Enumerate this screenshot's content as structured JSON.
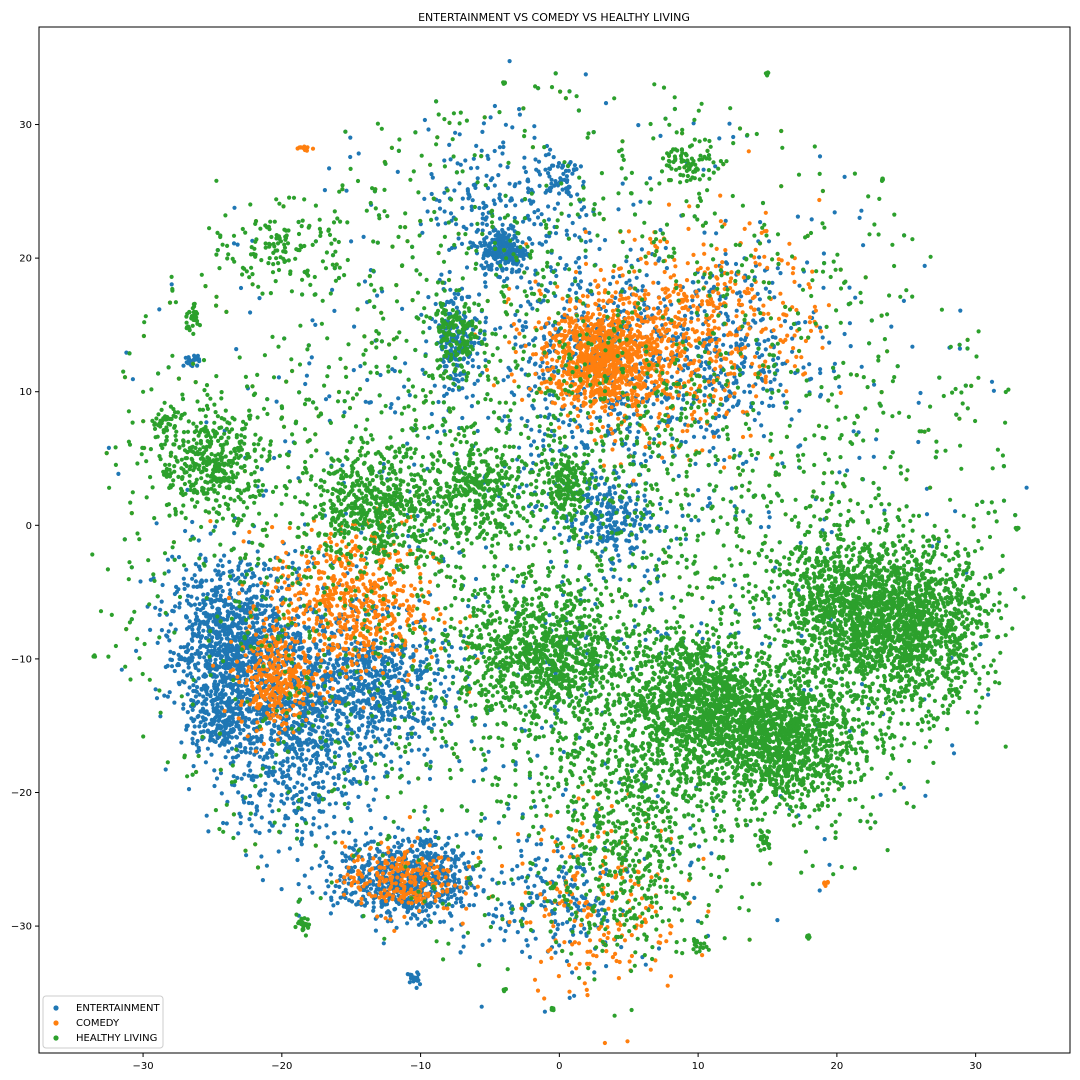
{
  "chart_data": {
    "type": "scatter",
    "title": "ENTERTAINMENT VS COMEDY VS HEALTHY LIVING",
    "xlabel": "",
    "ylabel": "",
    "xlim": [
      -37.5,
      36.8
    ],
    "ylim": [
      -39.5,
      37.3
    ],
    "xticks": [
      -30,
      -20,
      -10,
      0,
      10,
      20,
      30
    ],
    "yticks": [
      -30,
      -20,
      -10,
      0,
      10,
      20,
      30
    ],
    "xtick_labels": [
      "−30",
      "−20",
      "−10",
      "0",
      "10",
      "20",
      "30"
    ],
    "ytick_labels": [
      "−30",
      "−20",
      "−10",
      "0",
      "10",
      "20",
      "30"
    ],
    "grid": false,
    "legend_position": "lower-left",
    "series": [
      {
        "name": "ENTERTAINMENT",
        "color": "#1f77b4",
        "clusters": [
          {
            "x": -24,
            "y": -9,
            "sx": 2.0,
            "sy": 3.0,
            "n": 900
          },
          {
            "x": -19,
            "y": -14,
            "sx": 3.0,
            "sy": 4.5,
            "n": 1100
          },
          {
            "x": -13,
            "y": -12,
            "sx": 2.5,
            "sy": 2.5,
            "n": 500
          },
          {
            "x": -11,
            "y": -26.5,
            "sx": 2.5,
            "sy": 1.5,
            "n": 700
          },
          {
            "x": -24.5,
            "y": -15,
            "sx": 1.0,
            "sy": 1.0,
            "n": 150
          },
          {
            "x": -4,
            "y": 20.5,
            "sx": 0.8,
            "sy": 0.8,
            "n": 220
          },
          {
            "x": -7.5,
            "y": 14,
            "sx": 0.8,
            "sy": 2.0,
            "n": 180
          },
          {
            "x": 3.5,
            "y": 0.5,
            "sx": 1.5,
            "sy": 1.5,
            "n": 200
          },
          {
            "x": 0,
            "y": 26,
            "sx": 1.0,
            "sy": 1.0,
            "n": 60
          },
          {
            "x": -4.5,
            "y": 24,
            "sx": 2.5,
            "sy": 3.0,
            "n": 200
          },
          {
            "x": 3,
            "y": 12,
            "sx": 3.5,
            "sy": 4.5,
            "n": 500
          },
          {
            "x": 12,
            "y": 13,
            "sx": 3.0,
            "sy": 3.5,
            "n": 300
          },
          {
            "x": 0,
            "y": -28,
            "sx": 2.5,
            "sy": 3.0,
            "n": 200
          },
          {
            "x": -10.5,
            "y": -34,
            "sx": 0.2,
            "sy": 0.3,
            "n": 20
          },
          {
            "x": -26.5,
            "y": 12.3,
            "sx": 0.3,
            "sy": 0.2,
            "n": 25
          },
          {
            "x": 0,
            "y": 0,
            "sx": 17.0,
            "sy": 17.0,
            "n": 1400
          }
        ]
      },
      {
        "name": "COMEDY",
        "color": "#ff7f0e",
        "clusters": [
          {
            "x": 3,
            "y": 12.5,
            "sx": 2.0,
            "sy": 1.8,
            "n": 800
          },
          {
            "x": 6,
            "y": 13,
            "sx": 4.0,
            "sy": 3.5,
            "n": 500
          },
          {
            "x": 12,
            "y": 16,
            "sx": 3.5,
            "sy": 3.5,
            "n": 250
          },
          {
            "x": -15,
            "y": -6,
            "sx": 3.0,
            "sy": 3.0,
            "n": 600
          },
          {
            "x": -20.5,
            "y": -11.5,
            "sx": 1.3,
            "sy": 1.8,
            "n": 300
          },
          {
            "x": -11.5,
            "y": -26.5,
            "sx": 2.0,
            "sy": 1.3,
            "n": 250
          },
          {
            "x": 3,
            "y": -28,
            "sx": 3.0,
            "sy": 3.5,
            "n": 200
          },
          {
            "x": -18.5,
            "y": 28.2,
            "sx": 0.3,
            "sy": 0.1,
            "n": 10
          },
          {
            "x": 19.2,
            "y": -26.8,
            "sx": 0.1,
            "sy": 0.1,
            "n": 8
          },
          {
            "x": 0,
            "y": 0,
            "sx": 17.0,
            "sy": 17.0,
            "n": 600
          }
        ]
      },
      {
        "name": "HEALTHY LIVING",
        "color": "#2ca02c",
        "clusters": [
          {
            "x": 25,
            "y": -7.5,
            "sx": 2.8,
            "sy": 3.0,
            "n": 1500
          },
          {
            "x": 20,
            "y": -6,
            "sx": 2.5,
            "sy": 2.5,
            "n": 700
          },
          {
            "x": 15.5,
            "y": -16,
            "sx": 3.0,
            "sy": 2.5,
            "n": 1400
          },
          {
            "x": 10,
            "y": -13,
            "sx": 2.5,
            "sy": 2.5,
            "n": 1000
          },
          {
            "x": -1,
            "y": -10,
            "sx": 3.0,
            "sy": 2.5,
            "n": 900
          },
          {
            "x": -13,
            "y": 1.5,
            "sx": 2.5,
            "sy": 2.0,
            "n": 500
          },
          {
            "x": -6,
            "y": 2.5,
            "sx": 1.5,
            "sy": 1.5,
            "n": 250
          },
          {
            "x": 0.5,
            "y": 3,
            "sx": 1.0,
            "sy": 1.3,
            "n": 200
          },
          {
            "x": -25,
            "y": 4.5,
            "sx": 2.0,
            "sy": 2.0,
            "n": 400
          },
          {
            "x": -7.5,
            "y": 14,
            "sx": 1.0,
            "sy": 1.5,
            "n": 150
          },
          {
            "x": 5,
            "y": -22,
            "sx": 3.0,
            "sy": 5.0,
            "n": 600
          },
          {
            "x": 9.5,
            "y": 27,
            "sx": 1.0,
            "sy": 1.0,
            "n": 80
          },
          {
            "x": -20,
            "y": 21,
            "sx": 2.0,
            "sy": 1.5,
            "n": 120
          },
          {
            "x": 0,
            "y": 0,
            "sx": 17.0,
            "sy": 17.0,
            "n": 3500
          },
          {
            "x": -4,
            "y": 33.1,
            "sx": 0.06,
            "sy": 0.06,
            "n": 8
          },
          {
            "x": 15,
            "y": 33.8,
            "sx": 0.06,
            "sy": 0.06,
            "n": 8
          },
          {
            "x": 23.3,
            "y": 25.9,
            "sx": 0.06,
            "sy": 0.06,
            "n": 6
          },
          {
            "x": 33,
            "y": -0.2,
            "sx": 0.1,
            "sy": 0.06,
            "n": 6
          },
          {
            "x": -4,
            "y": -34.8,
            "sx": 0.06,
            "sy": 0.06,
            "n": 6
          },
          {
            "x": -0.5,
            "y": -36.2,
            "sx": 0.06,
            "sy": 0.06,
            "n": 5
          },
          {
            "x": -33.5,
            "y": -9.8,
            "sx": 0.06,
            "sy": 0.06,
            "n": 4
          },
          {
            "x": -26.5,
            "y": 15.5,
            "sx": 0.3,
            "sy": 0.5,
            "n": 30
          },
          {
            "x": -18.5,
            "y": -30,
            "sx": 0.3,
            "sy": 0.3,
            "n": 25
          },
          {
            "x": 14.7,
            "y": -23.8,
            "sx": 0.2,
            "sy": 0.3,
            "n": 20
          },
          {
            "x": 17.9,
            "y": -30.8,
            "sx": 0.1,
            "sy": 0.1,
            "n": 6
          },
          {
            "x": 10,
            "y": -31.5,
            "sx": 0.3,
            "sy": 0.2,
            "n": 15
          },
          {
            "x": -28.5,
            "y": 7.5,
            "sx": 0.5,
            "sy": 0.8,
            "n": 40
          }
        ]
      }
    ]
  }
}
